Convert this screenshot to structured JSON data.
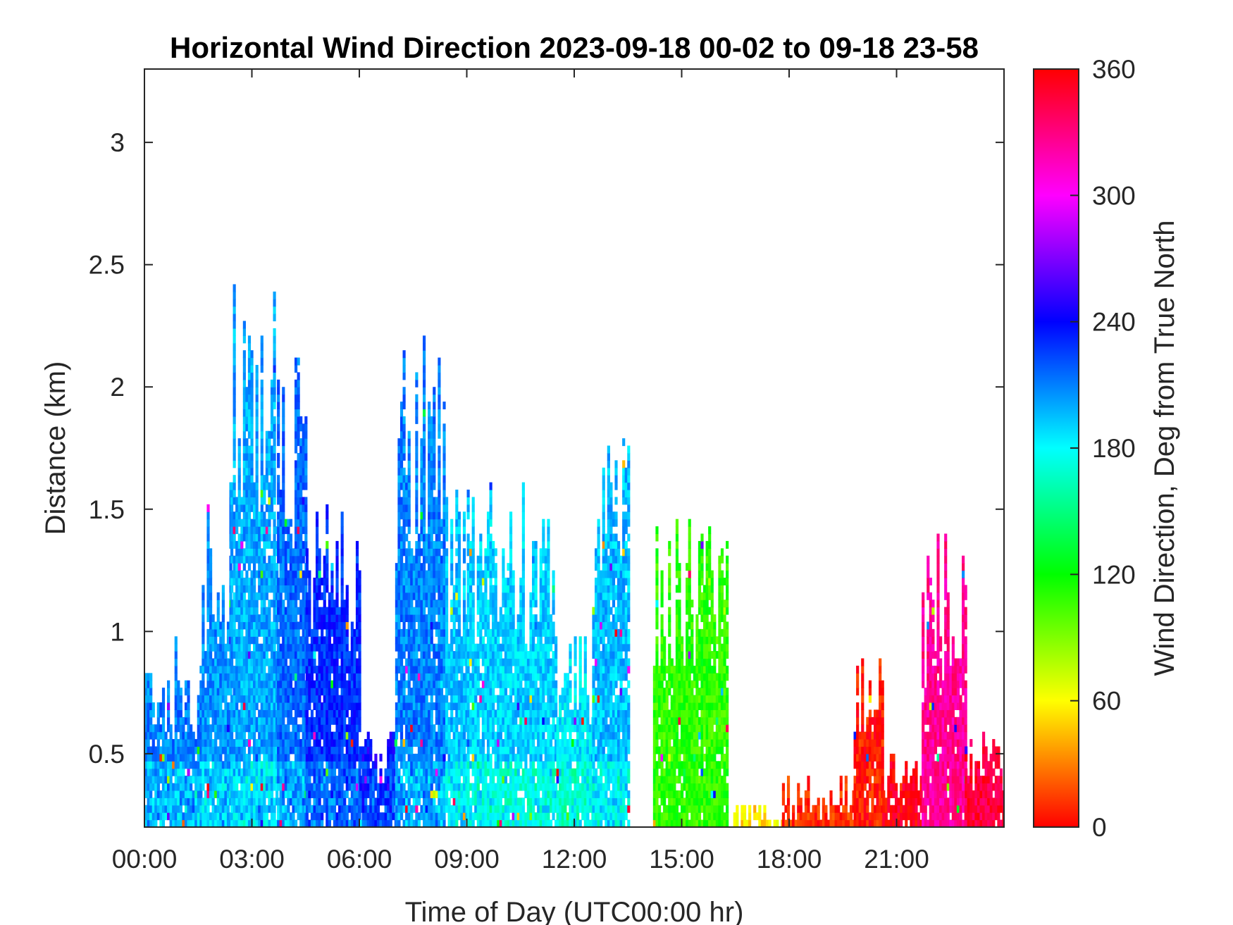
{
  "chart_data": {
    "type": "heatmap",
    "title": "Horizontal Wind Direction 2023-09-18 00-02 to 09-18 23-58",
    "xlabel": "Time of Day (UTC00:00 hr)",
    "ylabel": "Distance (km)",
    "x_ticks": [
      "00:00",
      "03:00",
      "06:00",
      "09:00",
      "12:00",
      "15:00",
      "18:00",
      "21:00"
    ],
    "x_tick_hours": [
      0,
      3,
      6,
      9,
      12,
      15,
      18,
      21
    ],
    "xlim_hours": [
      0,
      24
    ],
    "y_ticks": [
      "0.5",
      "1",
      "1.5",
      "2",
      "2.5",
      "3"
    ],
    "y_tick_values": [
      0.5,
      1,
      1.5,
      2,
      2.5,
      3
    ],
    "ylim": [
      0.2,
      3.3
    ],
    "colorbar": {
      "label": "Wind Direction, Deg from True North",
      "ticks": [
        "0",
        "60",
        "120",
        "180",
        "240",
        "300",
        "360"
      ],
      "tick_values": [
        0,
        60,
        120,
        180,
        240,
        300,
        360
      ],
      "range": [
        0,
        360
      ],
      "colormap": "hsv"
    },
    "grid": false,
    "regions": [
      {
        "hours": [
          0.0,
          1.6
        ],
        "top_km": 1.0,
        "direction_deg": 210
      },
      {
        "hours": [
          1.6,
          2.4
        ],
        "top_km": 1.6,
        "direction_deg": 205
      },
      {
        "hours": [
          2.4,
          3.7
        ],
        "top_km": 2.5,
        "direction_deg": 200
      },
      {
        "hours": [
          3.7,
          4.5
        ],
        "top_km": 2.3,
        "direction_deg": 215
      },
      {
        "hours": [
          4.5,
          6.0
        ],
        "top_km": 1.6,
        "direction_deg": 230
      },
      {
        "hours": [
          6.0,
          7.0
        ],
        "top_km": 0.6,
        "direction_deg": 240
      },
      {
        "hours": [
          7.0,
          8.4
        ],
        "top_km": 2.2,
        "direction_deg": 210
      },
      {
        "hours": [
          8.4,
          9.0
        ],
        "top_km": 1.7,
        "direction_deg": 195
      },
      {
        "hours": [
          9.0,
          11.5
        ],
        "top_km": 1.6,
        "direction_deg": 190
      },
      {
        "hours": [
          11.5,
          12.5
        ],
        "top_km": 1.0,
        "direction_deg": 185
      },
      {
        "hours": [
          12.5,
          13.5
        ],
        "top_km": 1.8,
        "direction_deg": 195
      },
      {
        "hours": [
          14.2,
          16.3
        ],
        "top_km": 1.5,
        "direction_deg": 110
      },
      {
        "hours": [
          16.3,
          17.8
        ],
        "top_km": 0.3,
        "direction_deg": 55
      },
      {
        "hours": [
          17.8,
          19.8
        ],
        "top_km": 0.4,
        "direction_deg": 10
      },
      {
        "hours": [
          19.8,
          20.6
        ],
        "top_km": 0.9,
        "direction_deg": 5
      },
      {
        "hours": [
          20.6,
          21.7
        ],
        "top_km": 0.5,
        "direction_deg": 355
      },
      {
        "hours": [
          21.7,
          22.9
        ],
        "top_km": 1.4,
        "direction_deg": 325
      },
      {
        "hours": [
          22.9,
          24.0
        ],
        "top_km": 0.6,
        "direction_deg": 345
      }
    ]
  }
}
